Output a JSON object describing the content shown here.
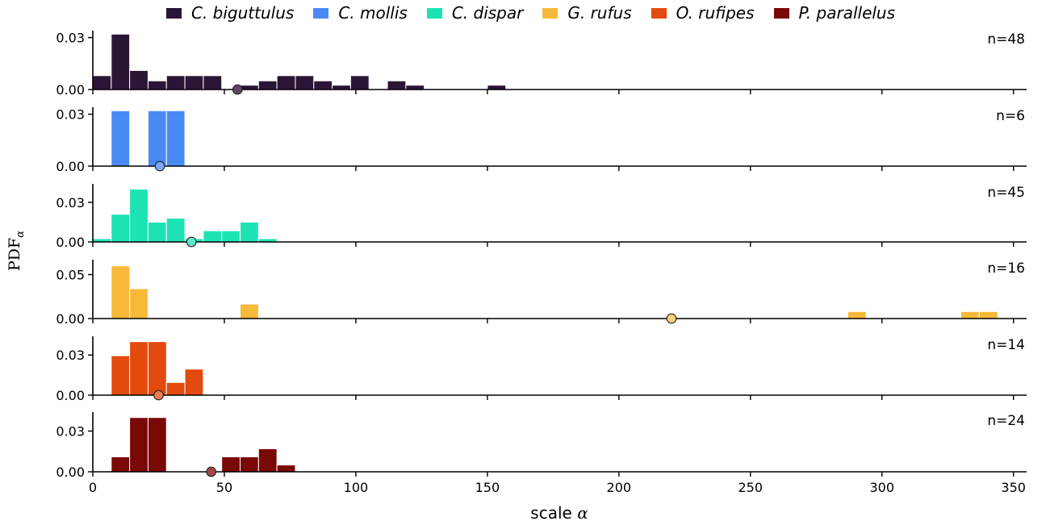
{
  "chart_data": {
    "type": "bar",
    "xlabel": "scale α",
    "ylabel": "PDF_α",
    "xlim": [
      0,
      355
    ],
    "x_ticks": [
      0,
      50,
      100,
      150,
      200,
      250,
      300,
      350
    ],
    "bin_width": 7,
    "legend_position": "top",
    "grid": false,
    "panels": [
      {
        "name": "C. biguttulus",
        "color": "#2b1537",
        "n_label": "n=48",
        "ylim": [
          0,
          0.034
        ],
        "y_ticks": [
          "0.00",
          "0.03"
        ],
        "y_tick_values": [
          0,
          0.03
        ],
        "marker_x": 55,
        "marker_color": "#5b4765",
        "bars": [
          {
            "x0": 0,
            "y": 0.008
          },
          {
            "x0": 7,
            "y": 0.032
          },
          {
            "x0": 14,
            "y": 0.011
          },
          {
            "x0": 21,
            "y": 0.005
          },
          {
            "x0": 28,
            "y": 0.008
          },
          {
            "x0": 35,
            "y": 0.008
          },
          {
            "x0": 42,
            "y": 0.008
          },
          {
            "x0": 56,
            "y": 0.0025
          },
          {
            "x0": 63,
            "y": 0.005
          },
          {
            "x0": 70,
            "y": 0.008
          },
          {
            "x0": 77,
            "y": 0.008
          },
          {
            "x0": 84,
            "y": 0.005
          },
          {
            "x0": 91,
            "y": 0.0025
          },
          {
            "x0": 98,
            "y": 0.008
          },
          {
            "x0": 112,
            "y": 0.005
          },
          {
            "x0": 119,
            "y": 0.0025
          },
          {
            "x0": 150,
            "y": 0.0025
          }
        ]
      },
      {
        "name": "C. mollis",
        "color": "#4a8af5",
        "n_label": "n=6",
        "ylim": [
          0,
          0.034
        ],
        "y_ticks": [
          "0.00",
          "0.03"
        ],
        "y_tick_values": [
          0,
          0.03
        ],
        "marker_x": 25.5,
        "marker_color": "#7aa8f7",
        "bars": [
          {
            "x0": 7,
            "y": 0.032
          },
          {
            "x0": 21,
            "y": 0.032
          },
          {
            "x0": 28,
            "y": 0.032
          }
        ]
      },
      {
        "name": "C. dispar",
        "color": "#1de3b4",
        "n_label": "n=45",
        "ylim": [
          0,
          0.044
        ],
        "y_ticks": [
          "0.00",
          "0.03"
        ],
        "y_tick_values": [
          0,
          0.03
        ],
        "marker_x": 37.5,
        "marker_color": "#5eebc9",
        "bars": [
          {
            "x0": 0,
            "y": 0.0025
          },
          {
            "x0": 7,
            "y": 0.021
          },
          {
            "x0": 14,
            "y": 0.04
          },
          {
            "x0": 21,
            "y": 0.015
          },
          {
            "x0": 28,
            "y": 0.018
          },
          {
            "x0": 35,
            "y": 0.0025
          },
          {
            "x0": 42,
            "y": 0.0085
          },
          {
            "x0": 49,
            "y": 0.0085
          },
          {
            "x0": 56,
            "y": 0.015
          },
          {
            "x0": 63,
            "y": 0.0025
          }
        ]
      },
      {
        "name": "G. rufus",
        "color": "#f7b93a",
        "n_label": "n=16",
        "ylim": [
          0,
          0.067
        ],
        "y_ticks": [
          "0.00",
          "0.05"
        ],
        "y_tick_values": [
          0,
          0.05
        ],
        "marker_x": 220,
        "marker_color": "#fad06f",
        "bars": [
          {
            "x0": 7,
            "y": 0.06
          },
          {
            "x0": 14,
            "y": 0.034
          },
          {
            "x0": 56,
            "y": 0.0165
          },
          {
            "x0": 287,
            "y": 0.008
          },
          {
            "x0": 330,
            "y": 0.008
          },
          {
            "x0": 337,
            "y": 0.008
          }
        ]
      },
      {
        "name": "O. rufipes",
        "color": "#e34a0e",
        "n_label": "n=14",
        "ylim": [
          0,
          0.044
        ],
        "y_ticks": [
          "0.00",
          "0.03"
        ],
        "y_tick_values": [
          0,
          0.03
        ],
        "marker_x": 25,
        "marker_color": "#ea7d4f",
        "bars": [
          {
            "x0": 7,
            "y": 0.0295
          },
          {
            "x0": 14,
            "y": 0.04
          },
          {
            "x0": 21,
            "y": 0.04
          },
          {
            "x0": 28,
            "y": 0.0095
          },
          {
            "x0": 35,
            "y": 0.0195
          }
        ]
      },
      {
        "name": "P. parallelus",
        "color": "#7a0807",
        "n_label": "n=24",
        "ylim": [
          0,
          0.044
        ],
        "y_ticks": [
          "0.00",
          "0.03"
        ],
        "y_tick_values": [
          0,
          0.03
        ],
        "marker_x": 45,
        "marker_color": "#a34845",
        "bars": [
          {
            "x0": 7,
            "y": 0.011
          },
          {
            "x0": 14,
            "y": 0.04
          },
          {
            "x0": 21,
            "y": 0.04
          },
          {
            "x0": 49,
            "y": 0.011
          },
          {
            "x0": 56,
            "y": 0.011
          },
          {
            "x0": 63,
            "y": 0.017
          },
          {
            "x0": 70,
            "y": 0.005
          }
        ]
      }
    ]
  }
}
